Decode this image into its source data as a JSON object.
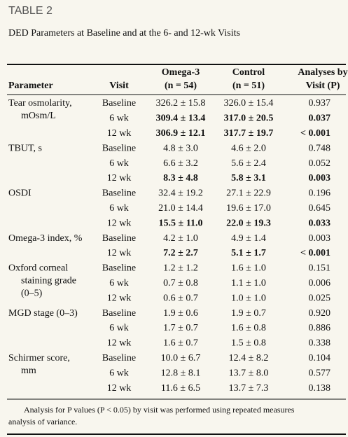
{
  "header": {
    "label": "TABLE 2",
    "caption": "DED Parameters at Baseline and at the 6- and 12-wk Visits"
  },
  "table": {
    "columns": {
      "parameter": [
        "Parameter"
      ],
      "visit": [
        "Visit"
      ],
      "omega3": [
        "Omega-3",
        "(n = 54)"
      ],
      "control": [
        "Control",
        "(n = 51)"
      ],
      "p": [
        "Analyses by",
        "Visit (P)"
      ]
    },
    "groups": [
      {
        "parameter": [
          "Tear osmolarity,",
          "mOsm/L"
        ],
        "rows": [
          {
            "visit": "Baseline",
            "omega3": "326.2 ± 15.8",
            "control": "326.0 ± 15.4",
            "p": "0.937",
            "bold": false
          },
          {
            "visit": "6 wk",
            "omega3": "309.4 ± 13.4",
            "control": "317.0 ± 20.5",
            "p": "0.037",
            "bold": true
          },
          {
            "visit": "12 wk",
            "omega3": "306.9 ± 12.1",
            "control": "317.7 ± 19.7",
            "p": "< 0.001",
            "bold": true
          }
        ]
      },
      {
        "parameter": [
          "TBUT, s"
        ],
        "rows": [
          {
            "visit": "Baseline",
            "omega3": "4.8 ± 3.0",
            "control": "4.6 ± 2.0",
            "p": "0.748",
            "bold": false
          },
          {
            "visit": "6 wk",
            "omega3": "6.6 ± 3.2",
            "control": "5.6 ± 2.4",
            "p": "0.052",
            "bold": false
          },
          {
            "visit": "12 wk",
            "omega3": "8.3 ± 4.8",
            "control": "5.8 ± 3.1",
            "p": "0.003",
            "bold": true
          }
        ]
      },
      {
        "parameter": [
          "OSDI"
        ],
        "rows": [
          {
            "visit": "Baseline",
            "omega3": "32.4 ± 19.2",
            "control": "27.1 ± 22.9",
            "p": "0.196",
            "bold": false
          },
          {
            "visit": "6 wk",
            "omega3": "21.0 ± 14.4",
            "control": "19.6 ± 17.0",
            "p": "0.645",
            "bold": false
          },
          {
            "visit": "12 wk",
            "omega3": "15.5 ± 11.0",
            "control": "22.0 ± 19.3",
            "p": "0.033",
            "bold": true
          }
        ]
      },
      {
        "parameter": [
          "Omega-3 index, %"
        ],
        "rows": [
          {
            "visit": "Baseline",
            "omega3": "4.2 ± 1.0",
            "control": "4.9 ± 1.4",
            "p": "0.003",
            "bold": false
          },
          {
            "visit": "12 wk",
            "omega3": "7.2 ± 2.7",
            "control": "5.1 ± 1.7",
            "p": "< 0.001",
            "bold": true
          }
        ]
      },
      {
        "parameter": [
          "Oxford corneal",
          "staining grade",
          "(0–5)"
        ],
        "rows": [
          {
            "visit": "Baseline",
            "omega3": "1.2 ± 1.2",
            "control": "1.6 ± 1.0",
            "p": "0.151",
            "bold": false
          },
          {
            "visit": "6 wk",
            "omega3": "0.7 ± 0.8",
            "control": "1.1 ± 1.0",
            "p": "0.006",
            "bold": false
          },
          {
            "visit": "12 wk",
            "omega3": "0.6 ± 0.7",
            "control": "1.0 ± 1.0",
            "p": "0.025",
            "bold": false
          }
        ]
      },
      {
        "parameter": [
          "MGD stage (0–3)"
        ],
        "rows": [
          {
            "visit": "Baseline",
            "omega3": "1.9 ± 0.6",
            "control": "1.9 ± 0.7",
            "p": "0.920",
            "bold": false
          },
          {
            "visit": "6 wk",
            "omega3": "1.7 ± 0.7",
            "control": "1.6 ± 0.8",
            "p": "0.886",
            "bold": false
          },
          {
            "visit": "12 wk",
            "omega3": "1.6 ± 0.7",
            "control": "1.5 ± 0.8",
            "p": "0.338",
            "bold": false
          }
        ]
      },
      {
        "parameter": [
          "Schirmer score,",
          "mm"
        ],
        "rows": [
          {
            "visit": "Baseline",
            "omega3": "10.0 ± 6.7",
            "control": "12.4 ± 8.2",
            "p": "0.104",
            "bold": false
          },
          {
            "visit": "6 wk",
            "omega3": "12.8 ± 8.1",
            "control": "13.7 ± 8.0",
            "p": "0.577",
            "bold": false
          },
          {
            "visit": "12 wk",
            "omega3": "11.6 ± 6.5",
            "control": "13.7 ± 7.3",
            "p": "0.138",
            "bold": false
          }
        ]
      }
    ]
  },
  "footnote": [
    "Analysis for P values (P < 0.05) by visit was performed using repeated measures",
    "analysis of variance."
  ]
}
